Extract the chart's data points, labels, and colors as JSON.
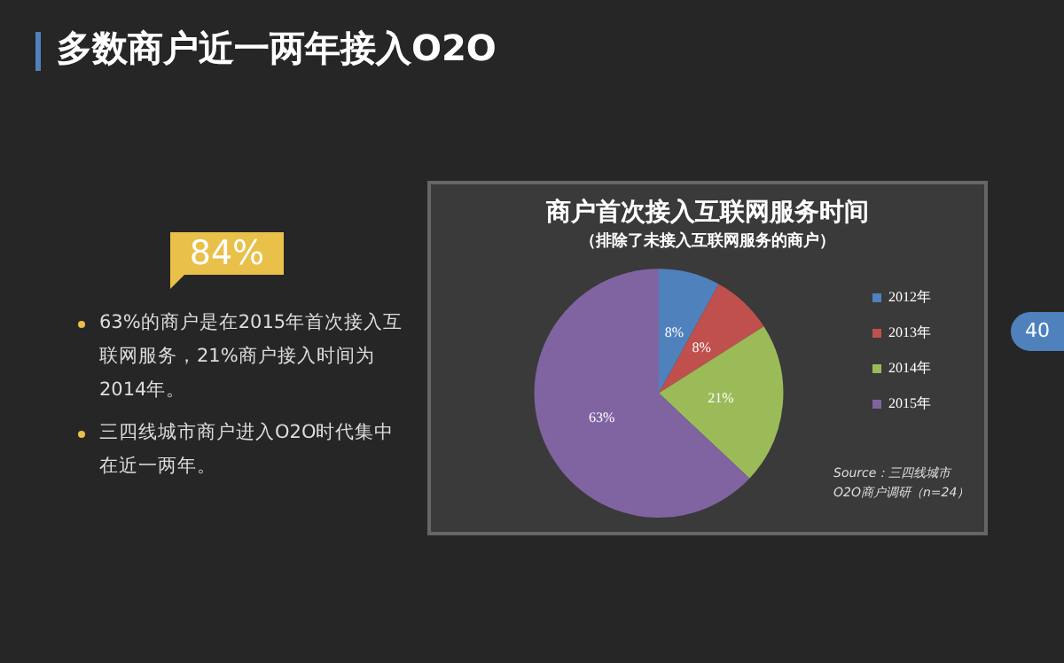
{
  "chart_data": {
    "type": "pie",
    "title": "商户首次接入互联网服务时间",
    "subtitle": "（排除了未接入互联网服务的商户）",
    "categories": [
      "2012年",
      "2013年",
      "2014年",
      "2015年"
    ],
    "values": [
      8,
      8,
      21,
      63
    ],
    "colors": [
      "#4f81bd",
      "#c0504d",
      "#9bbb59",
      "#8064a2"
    ],
    "value_labels": [
      "8%",
      "8%",
      "21%",
      "63%"
    ],
    "legend": "right",
    "annotations": [
      "多数商户近一两年接入O2O",
      "84%",
      "63%的商户是在2015年首次接入互联网服务，21%商户接入时间为2014年。",
      "三四线城市商户进入O2O时代集中在近一两年。",
      "40",
      "Source：三四线城市O2O商户调研（n=24）"
    ]
  }
}
